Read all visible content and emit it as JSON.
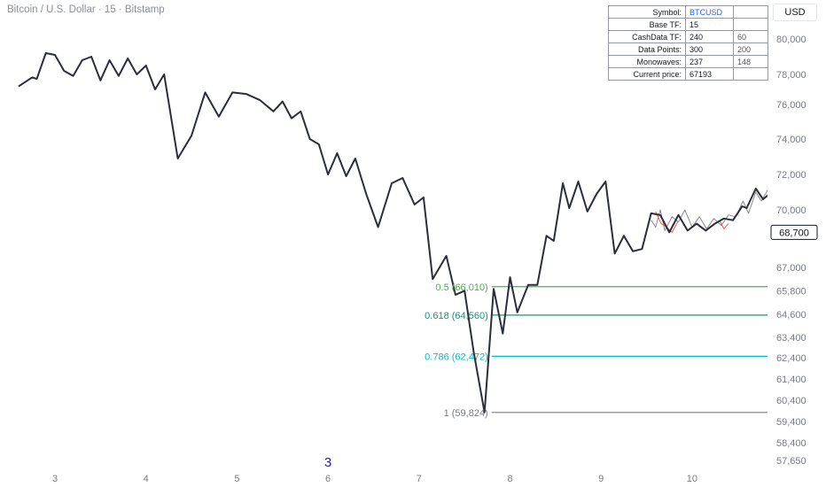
{
  "header": {
    "title": "Bitcoin / U.S. Dollar · 15 · Bitstamp",
    "currency": "USD"
  },
  "info_table": {
    "rows": [
      {
        "label": "Symbol:",
        "v1": "BTCUSD",
        "v2": ""
      },
      {
        "label": "Base TF:",
        "v1": "15",
        "v2": ""
      },
      {
        "label": "CashData TF:",
        "v1": "240",
        "v2": "60"
      },
      {
        "label": "Data Points:",
        "v1": "300",
        "v2": "200"
      },
      {
        "label": "Monowaves:",
        "v1": "237",
        "v2": "148"
      },
      {
        "label": "Current price:",
        "v1": "67193",
        "v2": ""
      }
    ]
  },
  "chart_data": {
    "type": "line",
    "x_ticks": [
      "3",
      "4",
      "5",
      "6",
      "7",
      "8",
      "9",
      "10"
    ],
    "y_ticks": [
      "80,000",
      "78,000",
      "76,000",
      "74,000",
      "72,000",
      "70,000",
      "67,000",
      "65,800",
      "64,600",
      "63,400",
      "62,400",
      "61,400",
      "60,400",
      "59,400",
      "58,400",
      "57,650"
    ],
    "y_tick_values": [
      80000,
      78000,
      76000,
      74000,
      72000,
      70000,
      67000,
      65800,
      64600,
      63400,
      62400,
      61400,
      60400,
      59400,
      58400,
      57650
    ],
    "last_price_label": "68,700",
    "last_price": 68700,
    "marker_label": "3",
    "fib_levels": [
      {
        "label": "0.5 (66,010)",
        "value": 66010,
        "color": "#4caf50"
      },
      {
        "label": "0.618 (64,560)",
        "value": 64560,
        "color": "#089981"
      },
      {
        "label": "0.786 (62,472)",
        "value": 62472,
        "color": "#00bcd4"
      },
      {
        "label": "1 (59,824)",
        "value": 59824,
        "color": "#787b86"
      }
    ],
    "series": [
      {
        "color": "#2a2e39",
        "points": [
          [
            2.6,
            77200
          ],
          [
            2.75,
            77800
          ],
          [
            2.8,
            77700
          ],
          [
            2.9,
            79200
          ],
          [
            3.0,
            79100
          ],
          [
            3.1,
            78200
          ],
          [
            3.2,
            77900
          ],
          [
            3.3,
            78800
          ],
          [
            3.4,
            79000
          ],
          [
            3.5,
            77600
          ],
          [
            3.6,
            78800
          ],
          [
            3.7,
            77900
          ],
          [
            3.8,
            78900
          ],
          [
            3.9,
            78000
          ],
          [
            4.0,
            78500
          ],
          [
            4.1,
            77000
          ],
          [
            4.2,
            78000
          ],
          [
            4.35,
            72900
          ],
          [
            4.5,
            74200
          ],
          [
            4.65,
            76800
          ],
          [
            4.8,
            75300
          ],
          [
            4.95,
            76800
          ],
          [
            5.1,
            76700
          ],
          [
            5.25,
            76300
          ],
          [
            5.4,
            75600
          ],
          [
            5.5,
            76200
          ],
          [
            5.6,
            75200
          ],
          [
            5.7,
            75600
          ],
          [
            5.8,
            74000
          ],
          [
            5.9,
            73700
          ],
          [
            6.0,
            72000
          ],
          [
            6.1,
            73200
          ],
          [
            6.2,
            71900
          ],
          [
            6.3,
            72900
          ],
          [
            6.42,
            70900
          ],
          [
            6.55,
            69000
          ],
          [
            6.7,
            71500
          ],
          [
            6.82,
            71800
          ],
          [
            6.95,
            70300
          ],
          [
            7.05,
            70700
          ],
          [
            7.15,
            66400
          ],
          [
            7.3,
            67500
          ],
          [
            7.4,
            65600
          ],
          [
            7.5,
            65800
          ],
          [
            7.6,
            62700
          ],
          [
            7.72,
            59824
          ],
          [
            7.82,
            65900
          ],
          [
            7.92,
            63600
          ],
          [
            8.0,
            66500
          ],
          [
            8.08,
            64700
          ],
          [
            8.2,
            66100
          ],
          [
            8.3,
            66100
          ],
          [
            8.4,
            68500
          ],
          [
            8.48,
            68200
          ],
          [
            8.58,
            71500
          ],
          [
            8.65,
            70100
          ],
          [
            8.75,
            71600
          ],
          [
            8.85,
            69900
          ],
          [
            8.95,
            70900
          ],
          [
            9.05,
            71600
          ],
          [
            9.15,
            67600
          ],
          [
            9.25,
            68500
          ],
          [
            9.35,
            67700
          ],
          [
            9.45,
            67800
          ],
          [
            9.55,
            69800
          ],
          [
            9.65,
            69700
          ],
          [
            9.75,
            68700
          ],
          [
            9.85,
            69700
          ],
          [
            9.95,
            68800
          ],
          [
            10.05,
            69200
          ],
          [
            10.15,
            68800
          ],
          [
            10.25,
            69200
          ],
          [
            10.35,
            69500
          ],
          [
            10.45,
            69400
          ],
          [
            10.55,
            70200
          ],
          [
            10.6,
            70100
          ],
          [
            10.7,
            71200
          ],
          [
            10.78,
            70600
          ],
          [
            10.85,
            70900
          ],
          [
            10.95,
            72000
          ],
          [
            11.05,
            70300
          ],
          [
            11.15,
            71200
          ],
          [
            11.25,
            70900
          ],
          [
            11.35,
            70400
          ],
          [
            11.45,
            69700
          ],
          [
            11.55,
            69100
          ],
          [
            11.62,
            68300
          ],
          [
            11.72,
            69700
          ],
          [
            11.82,
            68400
          ],
          [
            11.9,
            69100
          ],
          [
            12.0,
            70800
          ],
          [
            12.08,
            71000
          ],
          [
            12.18,
            69900
          ],
          [
            12.28,
            70300
          ],
          [
            12.38,
            69200
          ],
          [
            12.48,
            68900
          ],
          [
            12.58,
            69200
          ],
          [
            12.65,
            68700
          ],
          [
            12.75,
            69100
          ],
          [
            12.82,
            68100
          ],
          [
            12.9,
            69700
          ],
          [
            13.0,
            68600
          ],
          [
            13.1,
            69200
          ],
          [
            13.18,
            68700
          ]
        ]
      },
      {
        "color": "#8a8a8a",
        "points": [
          [
            9.55,
            69400
          ],
          [
            9.6,
            69000
          ],
          [
            9.65,
            70000
          ],
          [
            9.7,
            68800
          ],
          [
            9.78,
            69600
          ],
          [
            9.85,
            69300
          ],
          [
            9.92,
            70000
          ],
          [
            10.0,
            69000
          ],
          [
            10.08,
            69600
          ],
          [
            10.16,
            68900
          ],
          [
            10.24,
            69500
          ],
          [
            10.32,
            69100
          ],
          [
            10.4,
            69700
          ],
          [
            10.48,
            69600
          ],
          [
            10.56,
            70500
          ],
          [
            10.62,
            69800
          ],
          [
            10.7,
            71000
          ],
          [
            10.76,
            70500
          ],
          [
            10.84,
            71200
          ],
          [
            10.9,
            70400
          ],
          [
            10.98,
            72100
          ],
          [
            11.03,
            70200
          ],
          [
            11.1,
            71400
          ],
          [
            11.17,
            70300
          ],
          [
            11.24,
            71000
          ],
          [
            11.3,
            70000
          ],
          [
            11.38,
            69800
          ],
          [
            11.45,
            68500
          ],
          [
            11.52,
            69400
          ],
          [
            11.58,
            68200
          ],
          [
            11.65,
            69900
          ],
          [
            11.72,
            68600
          ],
          [
            11.78,
            69700
          ],
          [
            11.85,
            68300
          ],
          [
            11.9,
            69500
          ],
          [
            11.97,
            70900
          ],
          [
            12.03,
            70200
          ],
          [
            12.1,
            71100
          ],
          [
            12.16,
            70000
          ],
          [
            12.22,
            70400
          ],
          [
            12.3,
            69000
          ],
          [
            12.36,
            69800
          ],
          [
            12.42,
            68800
          ],
          [
            12.5,
            69300
          ],
          [
            12.58,
            68700
          ],
          [
            12.66,
            69300
          ],
          [
            12.74,
            68300
          ],
          [
            12.8,
            69500
          ],
          [
            12.86,
            68000
          ],
          [
            12.92,
            69800
          ],
          [
            12.98,
            68400
          ],
          [
            13.05,
            69400
          ],
          [
            13.12,
            68800
          ],
          [
            13.18,
            69000
          ]
        ]
      },
      {
        "color": "#f05454",
        "points": [
          [
            9.6,
            69900
          ],
          [
            9.66,
            69200
          ],
          [
            9.72,
            69000
          ],
          [
            9.78,
            68700
          ],
          [
            9.84,
            69300
          ],
          [
            10.3,
            69400
          ],
          [
            10.35,
            68900
          ],
          [
            10.4,
            69200
          ],
          [
            11.05,
            71300
          ],
          [
            11.1,
            70600
          ],
          [
            11.15,
            71000
          ],
          [
            11.9,
            68400
          ],
          [
            11.95,
            69500
          ],
          [
            12.0,
            68500
          ],
          [
            12.72,
            68400
          ],
          [
            12.78,
            69200
          ],
          [
            12.84,
            68600
          ]
        ]
      }
    ]
  }
}
